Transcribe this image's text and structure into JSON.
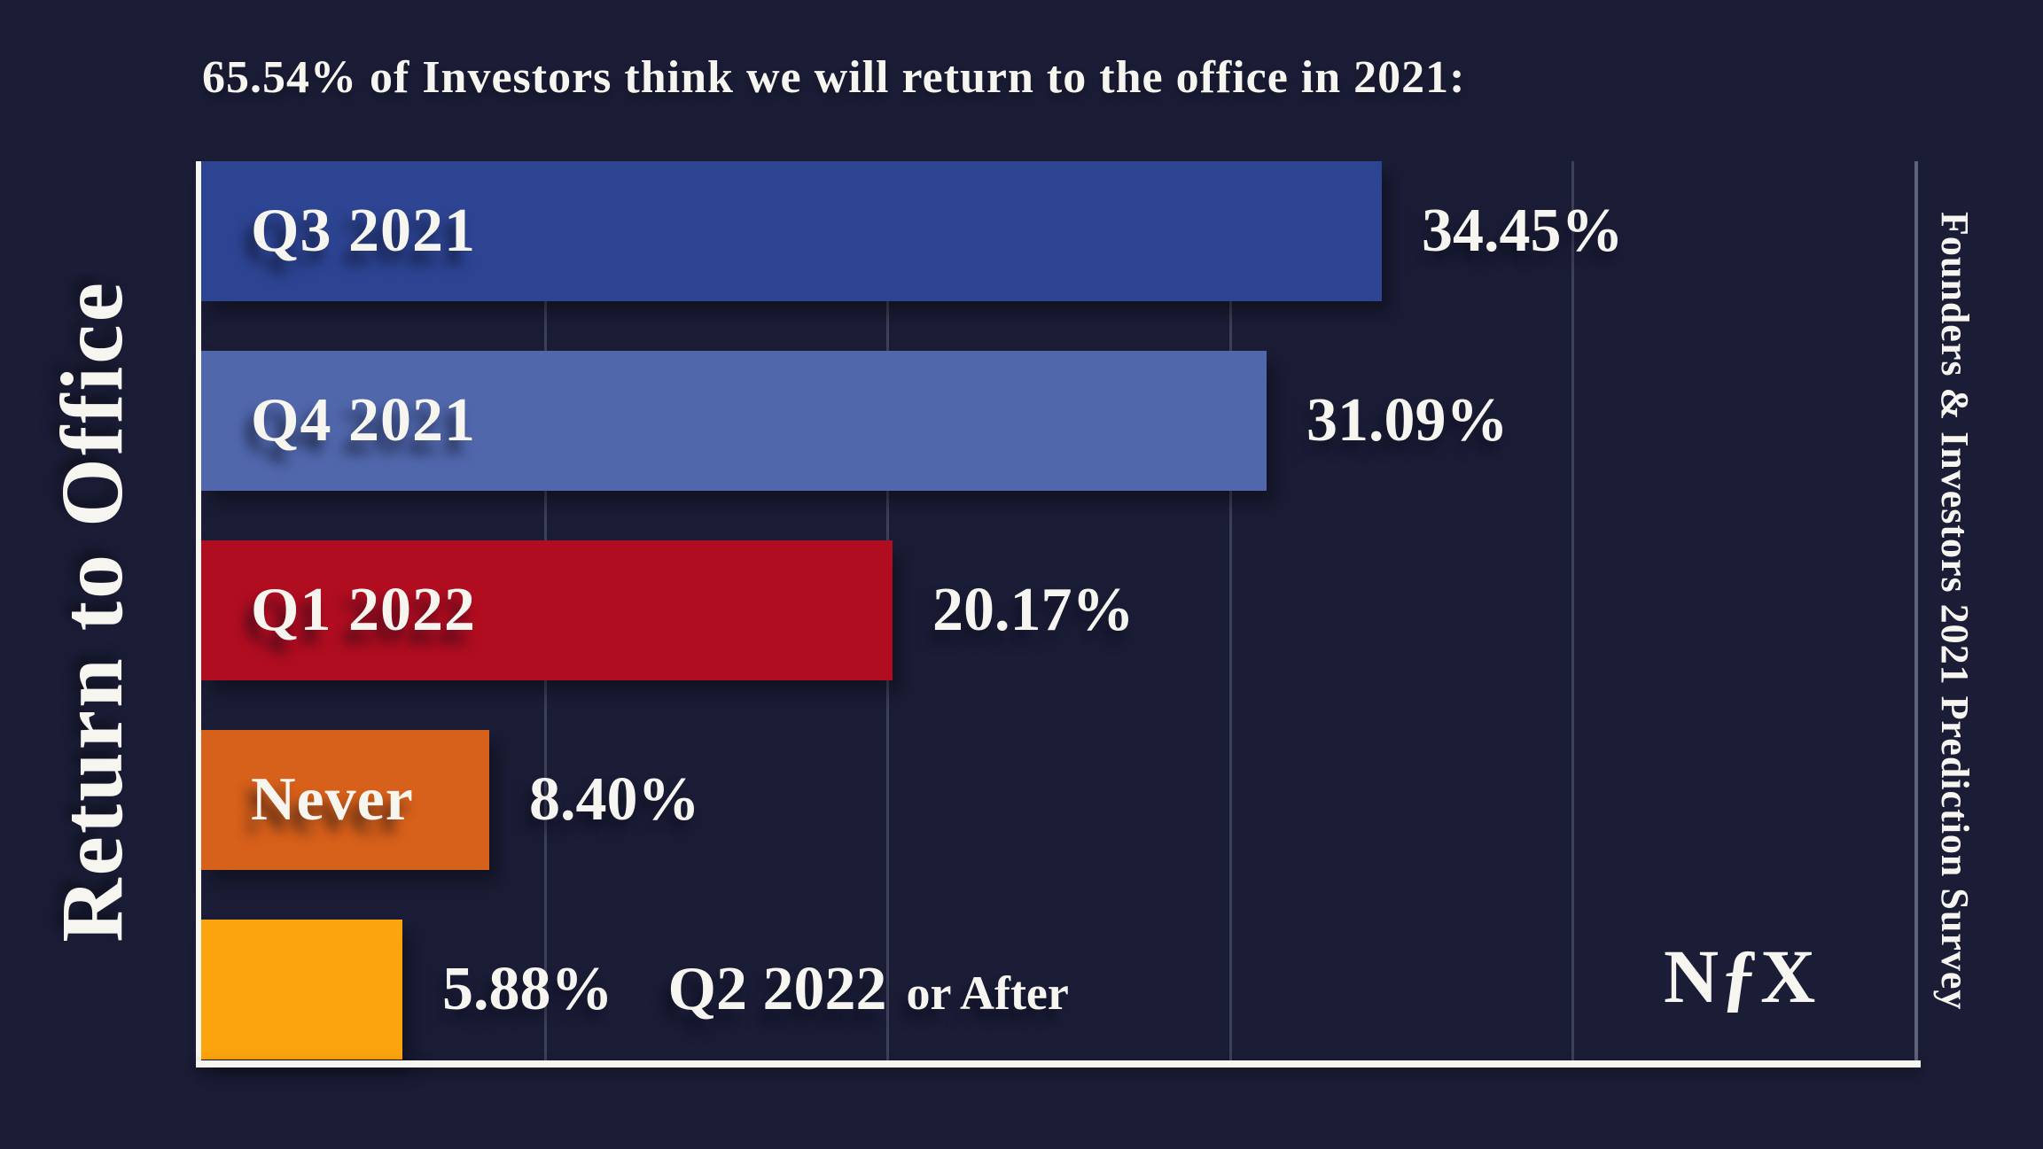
{
  "title": "65.54% of Investors think we will return to the office in 2021:",
  "axis": {
    "left_label": "Return to Office",
    "right_note": "Founders & Investors 2021 Prediction Survey"
  },
  "logo_text": "NƒX",
  "colors": {
    "background": "#1b1d37",
    "text": "#f6f5f0",
    "gridline": "#3d4059",
    "plot_right_border": "#969bb2",
    "axis_line": "#f6f5f0",
    "bar_colors": [
      "#2d4492",
      "#5067ac",
      "#b00d20",
      "#d7601a",
      "#fca40e"
    ]
  },
  "chart_data": {
    "type": "bar",
    "orientation": "horizontal",
    "title": "65.54% of Investors think we will return to the office in 2021:",
    "categories": [
      "Q3 2021",
      "Q4 2021",
      "Q1 2022",
      "Never",
      "Q2 2022 or After"
    ],
    "values": [
      34.45,
      31.09,
      20.17,
      8.4,
      5.88
    ],
    "value_labels": [
      "34.45%",
      "31.09%",
      "20.17%",
      "8.40%",
      "5.88%"
    ],
    "bar_colors": [
      "#2d4492",
      "#5067ac",
      "#b00d20",
      "#d7601a",
      "#fca40e"
    ],
    "xlim": [
      0,
      50
    ],
    "gridline_values": [
      10,
      20,
      30,
      40
    ],
    "grid": "on",
    "legend": "none",
    "ylabel": "Return to Office",
    "annotation": "Founders & Investors 2021 Prediction Survey",
    "last_category_main": "Q2 2022",
    "last_category_suffix": "or After",
    "category_label_position": [
      "inside",
      "inside",
      "inside",
      "inside",
      "outside-after-value"
    ]
  }
}
